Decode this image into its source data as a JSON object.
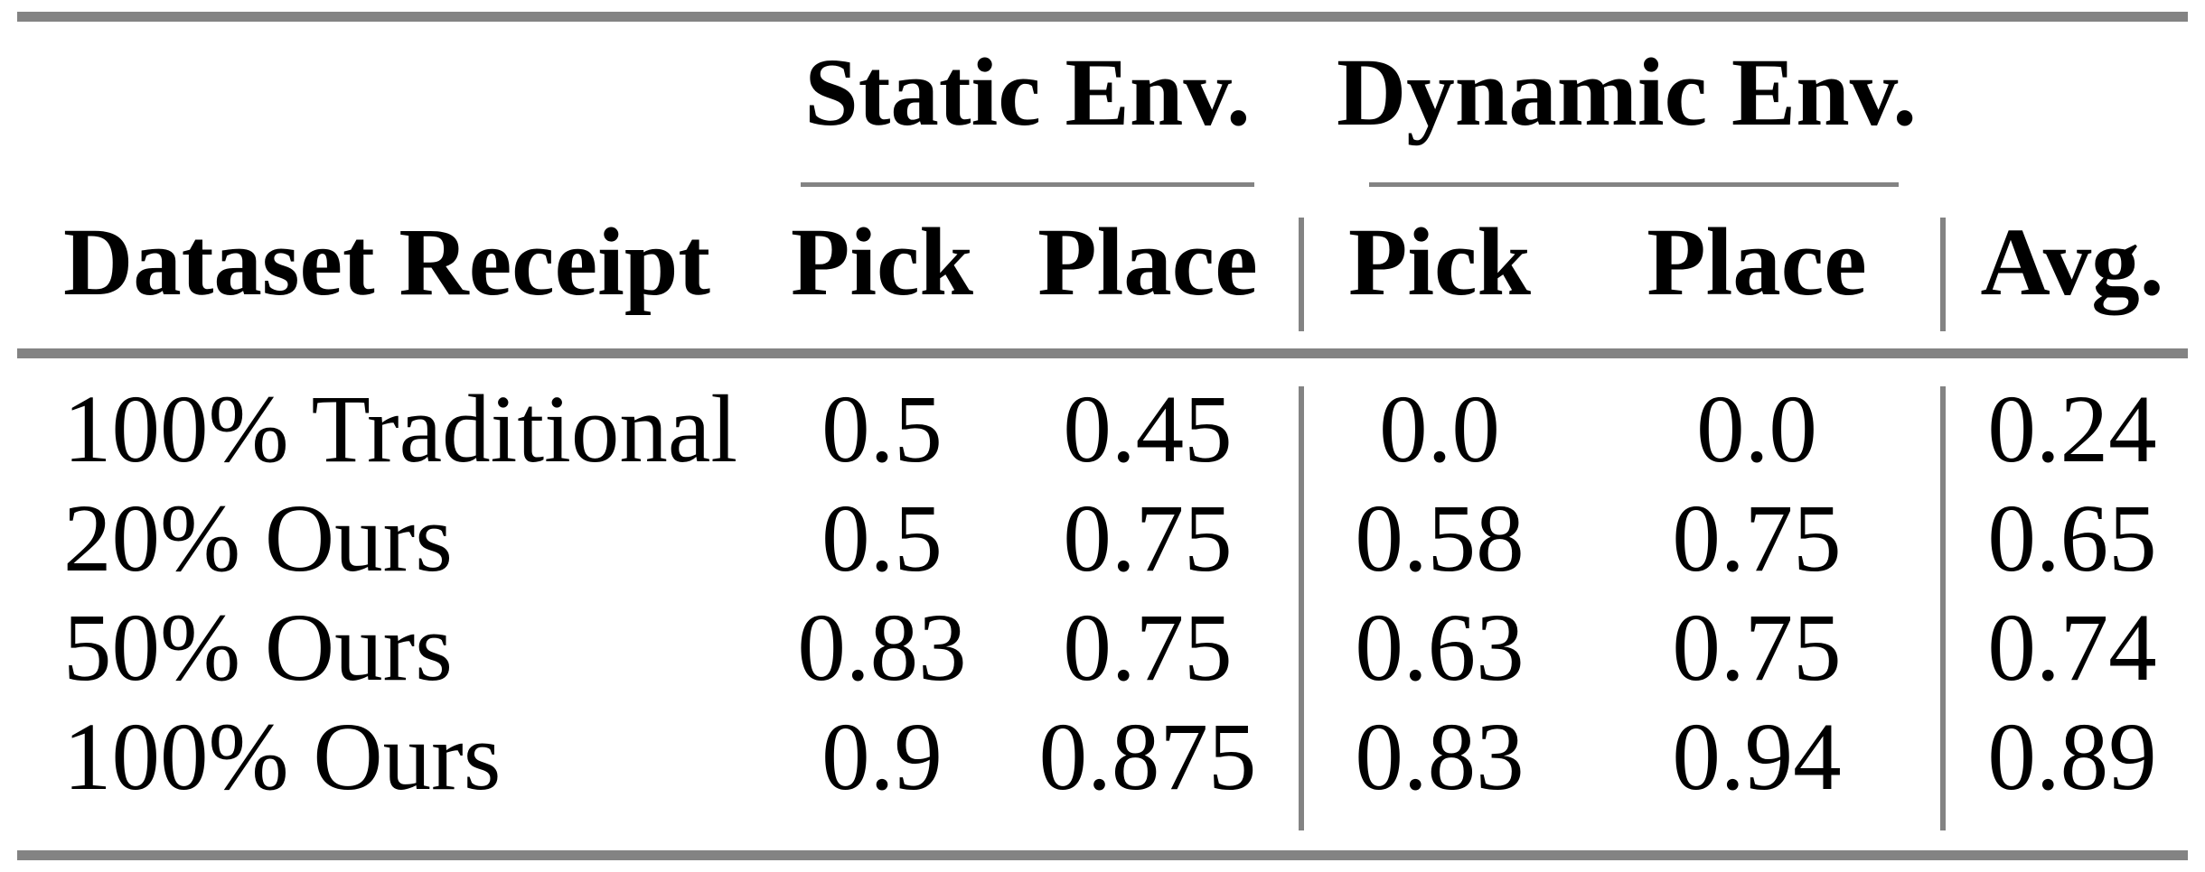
{
  "table": {
    "group_headers": {
      "static": "Static Env.",
      "dynamic": "Dynamic Env."
    },
    "columns": {
      "dataset": "Dataset Receipt",
      "static_pick": "Pick",
      "static_place": "Place",
      "dynamic_pick": "Pick",
      "dynamic_place": "Place",
      "avg": "Avg."
    },
    "rows": [
      {
        "label": "100% Traditional",
        "static_pick": "0.5",
        "static_place": "0.45",
        "dynamic_pick": "0.0",
        "dynamic_place": "0.0",
        "avg": "0.24"
      },
      {
        "label": "20% Ours",
        "static_pick": "0.5",
        "static_place": "0.75",
        "dynamic_pick": "0.58",
        "dynamic_place": "0.75",
        "avg": "0.65"
      },
      {
        "label": "50% Ours",
        "static_pick": "0.83",
        "static_place": "0.75",
        "dynamic_pick": "0.63",
        "dynamic_place": "0.75",
        "avg": "0.74"
      },
      {
        "label": "100% Ours",
        "static_pick": "0.9",
        "static_place": "0.875",
        "dynamic_pick": "0.83",
        "dynamic_place": "0.94",
        "avg": "0.89"
      }
    ],
    "colors": {
      "rule": "#838383",
      "text": "#000000",
      "background": "#ffffff"
    }
  }
}
